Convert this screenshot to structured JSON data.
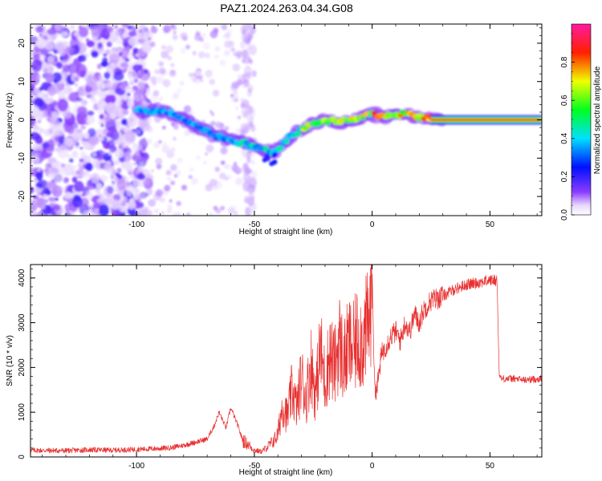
{
  "figure_title": "PAZ1.2024.263.04.34.G08",
  "colors": {
    "snr_line": "#e83030",
    "spectrogram_background": "#ffffff",
    "axis": "#000000"
  },
  "chart_data": [
    {
      "type": "heatmap",
      "panel": "spectrogram",
      "xlabel": "Height of straight line (km)",
      "ylabel": "Frequency (Hz)",
      "xlim": [
        -145,
        72
      ],
      "ylim": [
        -25,
        25
      ],
      "xticks": [
        -100,
        -50,
        0,
        50
      ],
      "yticks": [
        -20,
        -10,
        0,
        10,
        20
      ],
      "grid": false,
      "colormap": "rainbow (white → violet → blue → cyan → green → yellow → red → magenta)",
      "colorbar": {
        "label": "Normalized spectral amplitude",
        "range": [
          0,
          1
        ],
        "ticks": [
          0.0,
          0.2,
          0.4,
          0.6,
          0.8
        ]
      },
      "signal_ridge": {
        "description": "Dominant frequency ridge vs height",
        "x": [
          -100,
          -95,
          -90,
          -85,
          -80,
          -75,
          -70,
          -65,
          -60,
          -55,
          -50,
          -45,
          -42,
          -40,
          -35,
          -30,
          -25,
          -20,
          -15,
          -10,
          -5,
          0,
          5,
          10,
          15,
          20,
          30,
          40,
          50,
          60,
          72
        ],
        "y": [
          2.5,
          2,
          2.5,
          1.5,
          0.5,
          -1.5,
          -3,
          -4.5,
          -5.5,
          -6,
          -7,
          -8,
          -8.5,
          -7.5,
          -4.5,
          -2.5,
          -1,
          0,
          -0.5,
          -0.5,
          0.5,
          1.5,
          1,
          1,
          1.5,
          0.5,
          0,
          0,
          0,
          0,
          0
        ]
      },
      "noise_region_x": [
        -145,
        -100
      ]
    },
    {
      "type": "line",
      "panel": "snr",
      "xlabel": "Height of straight line (km)",
      "ylabel": "SNR (10 * v/v)",
      "xlim": [
        -145,
        72
      ],
      "ylim": [
        0,
        4300
      ],
      "xticks": [
        -100,
        -50,
        0,
        50
      ],
      "yticks": [
        0,
        1000,
        2000,
        3000,
        4000
      ],
      "grid": false,
      "series": [
        {
          "x": [
            -145,
            -130,
            -120,
            -110,
            -100,
            -95,
            -90,
            -85,
            -80,
            -75,
            -70,
            -67,
            -65,
            -62,
            -60,
            -57,
            -55,
            -52,
            -50,
            -47,
            -45,
            -42,
            -40,
            -38,
            -36,
            -34,
            -32,
            -30,
            -28,
            -26,
            -24,
            -22,
            -20,
            -18,
            -16,
            -14,
            -12,
            -10,
            -8,
            -6,
            -4,
            -2,
            -1,
            0,
            1,
            2,
            4,
            6,
            8,
            10,
            12,
            14,
            16,
            18,
            20,
            22,
            25,
            28,
            30,
            35,
            40,
            45,
            50,
            53,
            54,
            55,
            60,
            65,
            72
          ],
          "y": [
            150,
            140,
            160,
            150,
            170,
            180,
            190,
            210,
            260,
            330,
            400,
            700,
            1000,
            650,
            1100,
            700,
            380,
            250,
            150,
            120,
            200,
            350,
            500,
            1200,
            900,
            1500,
            1100,
            1800,
            1300,
            2100,
            1400,
            2400,
            1700,
            2300,
            2000,
            2600,
            2100,
            2500,
            2400,
            2700,
            2600,
            2900,
            3100,
            4200,
            1600,
            1500,
            2300,
            2500,
            2700,
            2800,
            2600,
            3000,
            2800,
            3200,
            3000,
            3300,
            3500,
            3550,
            3600,
            3750,
            3850,
            3900,
            3950,
            3950,
            1800,
            1750,
            1750,
            1720,
            1750
          ]
        }
      ]
    }
  ]
}
